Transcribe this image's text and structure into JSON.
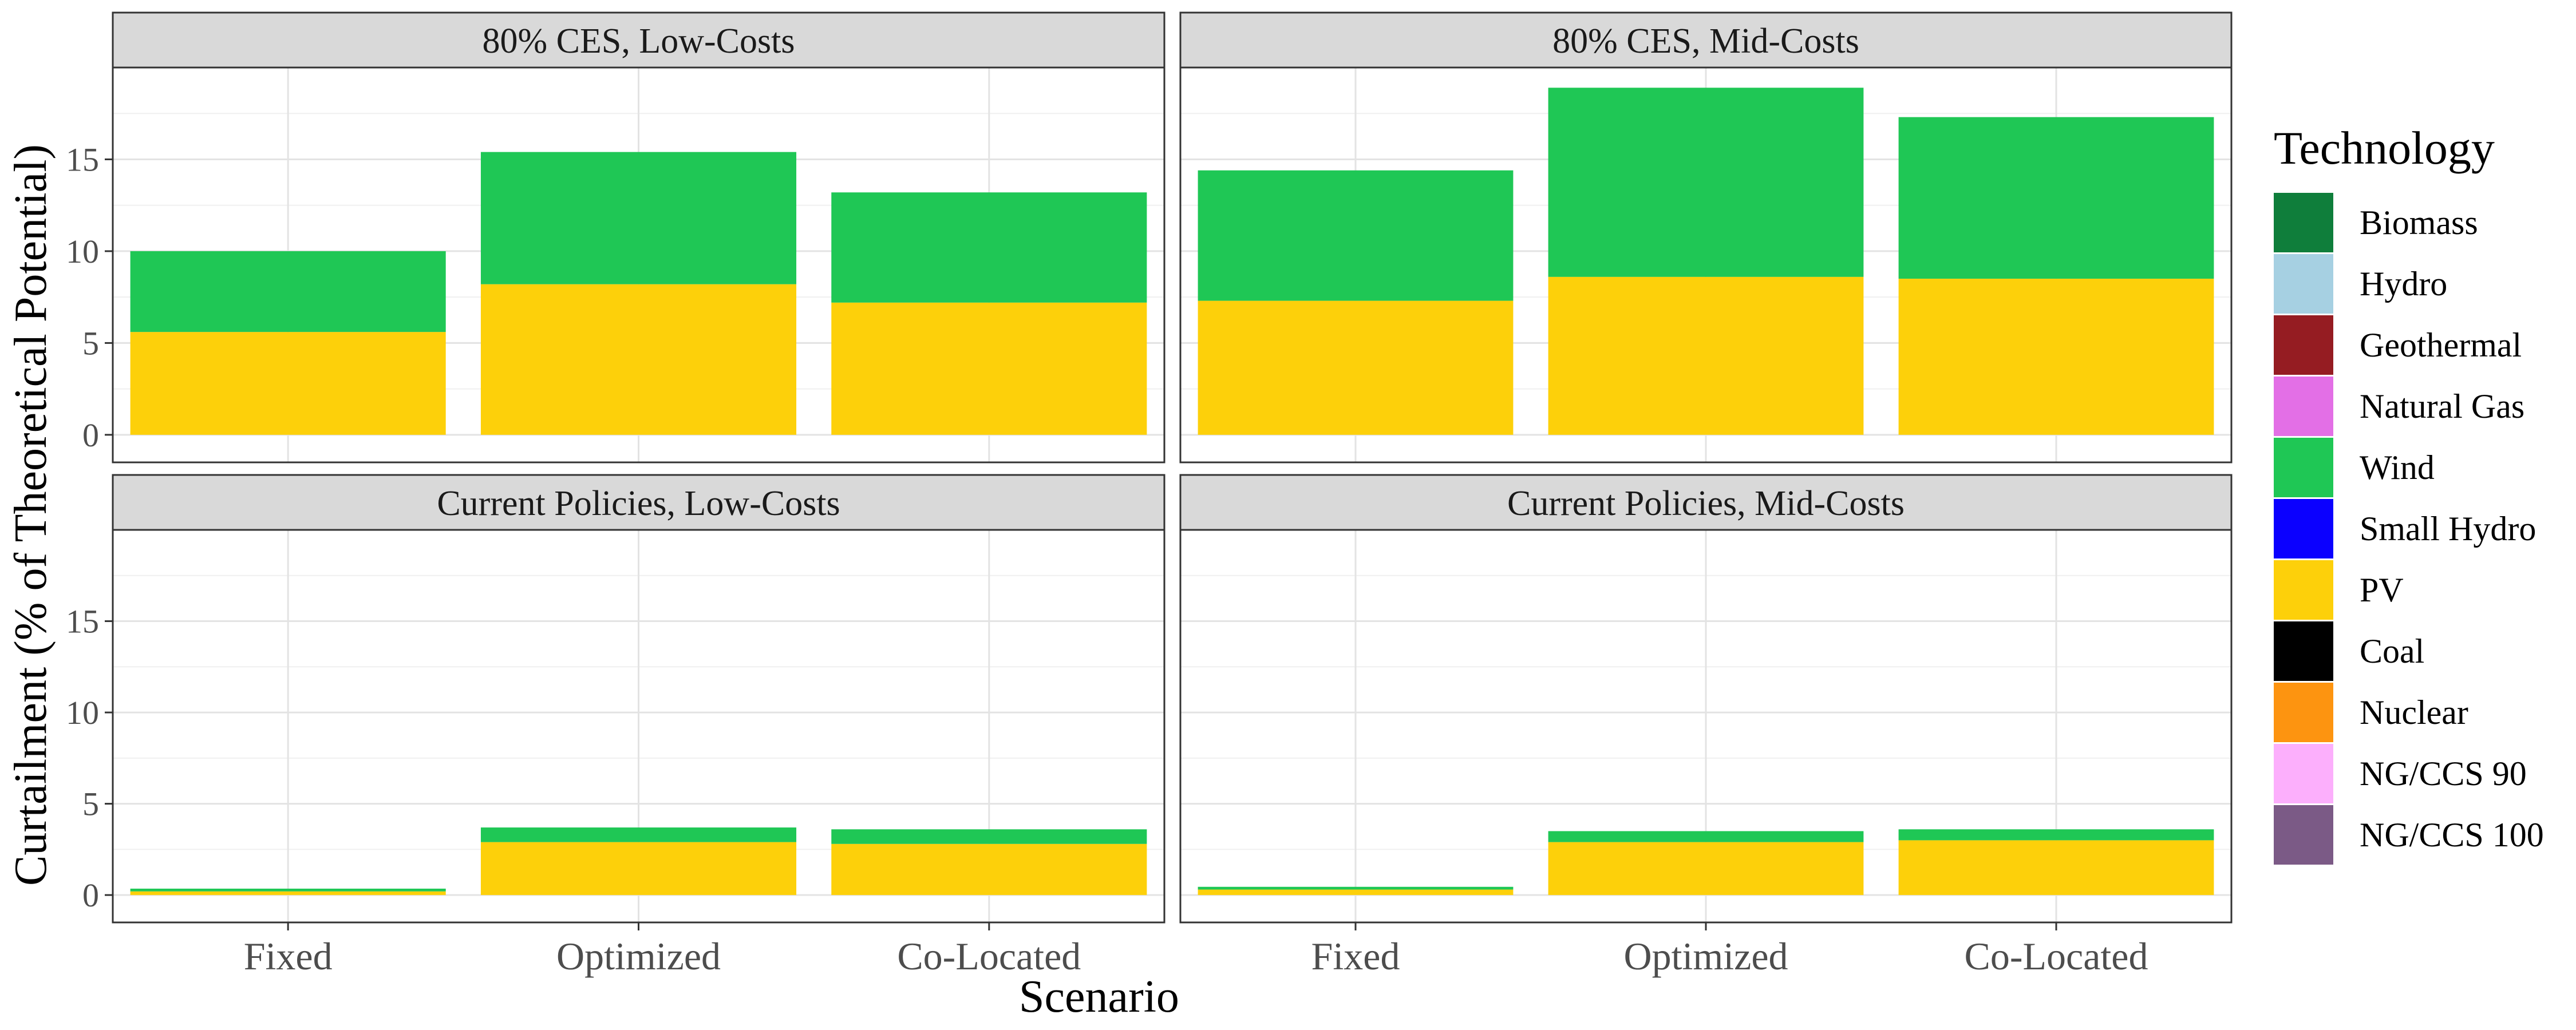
{
  "chart_data": {
    "type": "bar",
    "stacked": true,
    "xlabel": "Scenario",
    "ylabel": "Curtailment (% of Theoretical Potential)",
    "ylim": [
      -1.5,
      20
    ],
    "yticks": [
      0,
      5,
      10,
      15
    ],
    "categories": [
      "Fixed",
      "Optimized",
      "Co-Located"
    ],
    "stack_order": [
      "PV",
      "Wind"
    ],
    "panels": [
      {
        "title": "80% CES, Low-Costs",
        "series": [
          {
            "name": "PV",
            "values": [
              5.6,
              8.2,
              7.2
            ]
          },
          {
            "name": "Wind",
            "values": [
              4.4,
              7.2,
              6.0
            ]
          }
        ]
      },
      {
        "title": "80% CES, Mid-Costs",
        "series": [
          {
            "name": "PV",
            "values": [
              7.3,
              8.6,
              8.5
            ]
          },
          {
            "name": "Wind",
            "values": [
              7.1,
              10.3,
              8.8
            ]
          }
        ]
      },
      {
        "title": "Current Policies, Low-Costs",
        "series": [
          {
            "name": "PV",
            "values": [
              0.2,
              2.9,
              2.8
            ]
          },
          {
            "name": "Wind",
            "values": [
              0.15,
              0.8,
              0.8
            ]
          }
        ]
      },
      {
        "title": "Current Policies, Mid-Costs",
        "series": [
          {
            "name": "PV",
            "values": [
              0.3,
              2.9,
              3.0
            ]
          },
          {
            "name": "Wind",
            "values": [
              0.15,
              0.6,
              0.6
            ]
          }
        ]
      }
    ],
    "legend": {
      "title": "Technology",
      "position": "right",
      "items": [
        {
          "name": "Biomass",
          "color": "#0f7e3b"
        },
        {
          "name": "Hydro",
          "color": "#a6d0e2"
        },
        {
          "name": "Geothermal",
          "color": "#951c22"
        },
        {
          "name": "Natural Gas",
          "color": "#e36fe6"
        },
        {
          "name": "Wind",
          "color": "#1fc755"
        },
        {
          "name": "Small Hydro",
          "color": "#0b00ff"
        },
        {
          "name": "PV",
          "color": "#fdd00a"
        },
        {
          "name": "Coal",
          "color": "#000000"
        },
        {
          "name": "Nuclear",
          "color": "#fd9410"
        },
        {
          "name": "NG/CCS 90",
          "color": "#fcaffc"
        },
        {
          "name": "NG/CCS 100",
          "color": "#7b5a86"
        }
      ]
    }
  }
}
